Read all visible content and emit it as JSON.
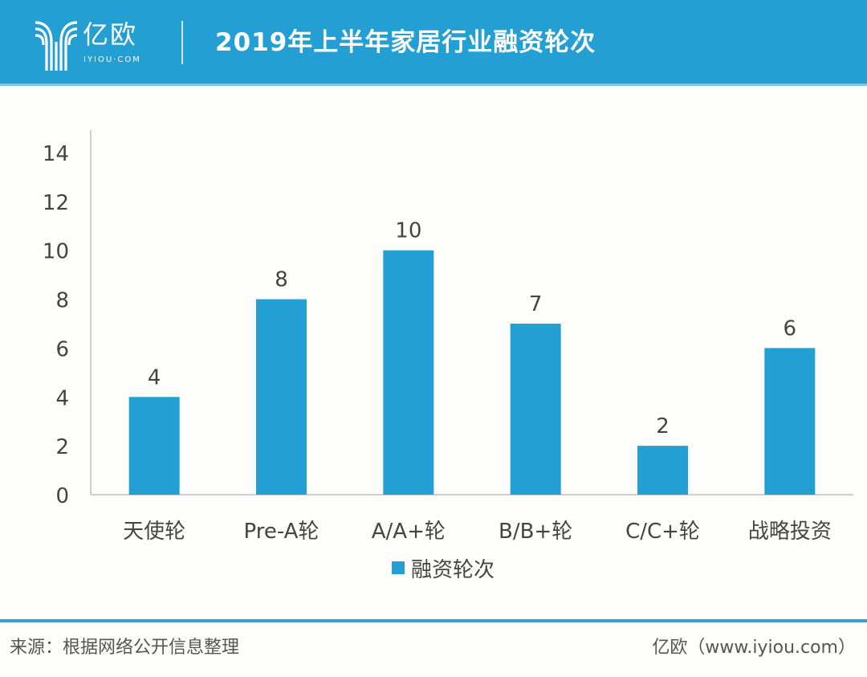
{
  "header": {
    "logo_cn": "亿欧",
    "logo_en": "IYIOU·COM",
    "title": "2019年上半年家居行业融资轮次"
  },
  "footer": {
    "source": "来源：根据网络公开信息整理",
    "credit": "亿欧（www.iyiou.com）"
  },
  "colors": {
    "header_bg": "#239fd3",
    "bar": "#239fd3",
    "axis": "#bdbdbd",
    "text": "#444444"
  },
  "chart_data": {
    "type": "bar",
    "title": "2019年上半年家居行业融资轮次",
    "categories": [
      "天使轮",
      "Pre-A轮",
      "A/A+轮",
      "B/B+轮",
      "C/C+轮",
      "战略投资"
    ],
    "series": [
      {
        "name": "融资轮次",
        "values": [
          4,
          8,
          10,
          7,
          2,
          6
        ]
      }
    ],
    "ylim": [
      0,
      14
    ],
    "yticks": [
      0,
      2,
      4,
      6,
      8,
      10,
      12,
      14
    ],
    "xlabel": "",
    "ylabel": "",
    "grid": false,
    "data_labels": true,
    "legend": {
      "position": "bottom",
      "entries": [
        "融资轮次"
      ]
    }
  }
}
